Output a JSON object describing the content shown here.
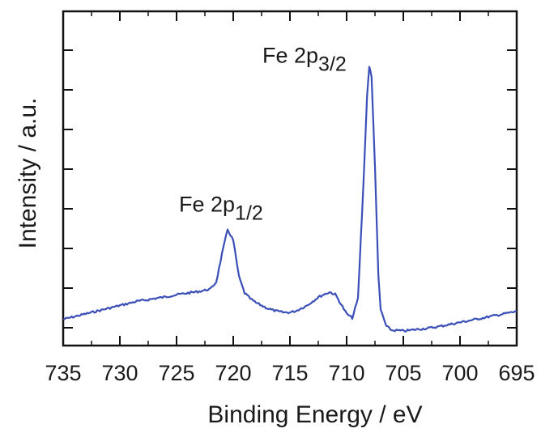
{
  "chart_data": {
    "type": "line",
    "title": "",
    "xlabel": "Binding Energy / eV",
    "ylabel": "Intensity / a.u.",
    "xlim": [
      735,
      695
    ],
    "ylim": [
      0,
      100
    ],
    "x_reversed": true,
    "x_ticks": [
      735,
      730,
      725,
      720,
      715,
      710,
      705,
      700,
      695
    ],
    "y_ticks_labeled": false,
    "grid": false,
    "line_color": "#3b4fb8",
    "series": [
      {
        "x": [
          735,
          734.5,
          734,
          733.5,
          733,
          732.5,
          732,
          731.5,
          731,
          730.5,
          730,
          729.5,
          729,
          728.5,
          728,
          727.5,
          727,
          726.5,
          726,
          725.5,
          725,
          724.5,
          724,
          723.5,
          723,
          722.5,
          722,
          721.5,
          721,
          720.5,
          720,
          719.5,
          719,
          718.5,
          718,
          717.5,
          717,
          716.5,
          716,
          715.5,
          715,
          714.5,
          714,
          713.5,
          713,
          712.5,
          712,
          711.5,
          711,
          710.5,
          710,
          709.5,
          709,
          708.5,
          708.2,
          708,
          707.8,
          707.5,
          707.2,
          707,
          706.5,
          706,
          705.5,
          705,
          704.5,
          704,
          703.5,
          703,
          702.5,
          702,
          701.5,
          701,
          700.5,
          700,
          699.5,
          699,
          698.5,
          698,
          697.5,
          697,
          696.5,
          696,
          695.5,
          695
        ],
        "y": [
          4.5,
          5.0,
          5.5,
          6.0,
          6.5,
          7.0,
          7.5,
          8.0,
          8.5,
          9.0,
          9.5,
          10.0,
          10.5,
          11.0,
          11.3,
          11.6,
          12.0,
          12.3,
          12.6,
          13.0,
          13.4,
          13.7,
          14.0,
          14.3,
          14.6,
          15.0,
          15.5,
          18.0,
          28.0,
          37.0,
          33.0,
          20.0,
          14.0,
          12.0,
          10.5,
          9.5,
          8.5,
          7.8,
          7.3,
          7.0,
          7.0,
          7.5,
          8.5,
          9.5,
          11.0,
          12.5,
          13.5,
          14.3,
          13.5,
          10.0,
          6.5,
          5.0,
          12.0,
          55.0,
          85.0,
          96.0,
          92.0,
          60.0,
          20.0,
          8.0,
          2.0,
          0.5,
          0.5,
          0.3,
          0.5,
          0.8,
          1.0,
          1.2,
          1.5,
          1.8,
          2.2,
          2.6,
          3.0,
          3.4,
          3.8,
          4.2,
          4.6,
          5.0,
          5.4,
          5.8,
          6.2,
          6.6,
          7.0,
          7.3
        ]
      }
    ],
    "annotations": [
      {
        "text": "Fe 2p",
        "sub": "1/2",
        "x": 720.5,
        "y": 37
      },
      {
        "text": "Fe 2p",
        "sub": "3/2",
        "x": 708,
        "y": 96
      }
    ]
  }
}
